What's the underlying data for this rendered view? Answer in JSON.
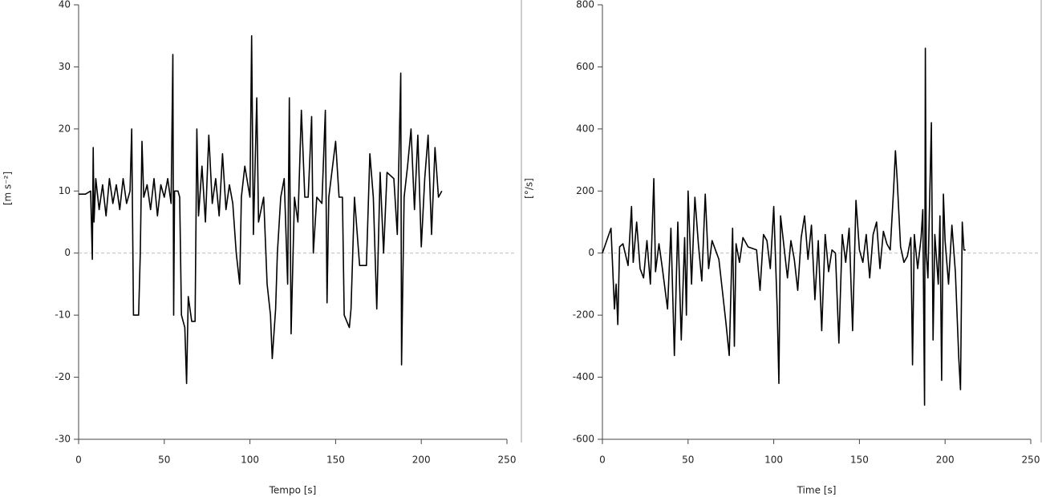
{
  "chart_data": [
    {
      "type": "line",
      "xlabel": "Tempo [s]",
      "ylabel": "[m s⁻²]",
      "xlim": [
        0,
        250
      ],
      "xticks": [
        0,
        50,
        100,
        150,
        200,
        250
      ],
      "ylim": [
        -30,
        40
      ],
      "yticks": [
        -30,
        -20,
        -10,
        0,
        10,
        20,
        30,
        40
      ],
      "zero_line": true,
      "x": [
        0,
        4,
        7,
        8,
        8.5,
        9,
        10,
        12,
        14,
        16,
        18,
        20,
        22,
        24,
        26,
        28,
        30,
        31,
        32,
        33,
        35,
        36,
        37,
        38,
        40,
        42,
        44,
        46,
        48,
        50,
        52,
        54,
        55,
        55.5,
        56,
        58,
        59,
        60,
        62,
        63,
        64,
        66,
        68,
        69,
        70,
        72,
        74,
        76,
        78,
        80,
        82,
        84,
        86,
        88,
        90,
        92,
        94,
        95,
        97,
        100,
        101,
        102,
        104,
        105,
        108,
        110,
        112,
        113,
        115,
        116,
        118,
        120,
        122,
        123,
        124,
        126,
        128,
        130,
        132,
        134,
        136,
        137,
        139,
        142,
        144,
        145,
        146,
        150,
        152,
        154,
        155,
        158,
        159,
        161,
        164,
        168,
        170,
        172,
        174,
        176,
        178,
        180,
        184,
        186,
        188,
        188.5,
        190,
        192,
        194,
        196,
        198,
        200,
        202,
        204,
        206,
        208,
        210,
        212
      ],
      "series": [
        {
          "color": "#000000",
          "values": [
            9.5,
            9.5,
            10,
            -1,
            17,
            5,
            12,
            7,
            11,
            6,
            12,
            8,
            11,
            7,
            12,
            8,
            10,
            20,
            -10,
            -10,
            -10,
            0,
            18,
            9,
            11,
            7,
            12,
            6,
            11,
            9,
            12,
            8,
            32,
            -10,
            10,
            10,
            9,
            -10,
            -12,
            -21,
            -7,
            -11,
            -11,
            20,
            6,
            14,
            5,
            19,
            8,
            12,
            6,
            16,
            7,
            11,
            8,
            0,
            -5,
            9,
            14,
            9,
            35,
            3,
            25,
            5,
            9,
            -5,
            -10,
            -17,
            -9,
            0,
            9,
            12,
            -5,
            25,
            -13,
            9,
            5,
            23,
            9,
            9,
            22,
            0,
            9,
            8,
            23,
            -8,
            9,
            18,
            9,
            9,
            -10,
            -12,
            -9,
            9,
            -2,
            -2,
            16,
            9,
            -9,
            13,
            0,
            13,
            12,
            3,
            29,
            -18,
            9,
            14,
            20,
            7,
            19,
            1,
            12,
            19,
            3,
            17,
            9,
            10
          ]
        }
      ]
    },
    {
      "type": "line",
      "xlabel": "Time [s]",
      "ylabel": "[°/s]",
      "xlim": [
        0,
        250
      ],
      "xticks": [
        0,
        50,
        100,
        150,
        200,
        250
      ],
      "ylim": [
        -600,
        800
      ],
      "yticks": [
        -600,
        -400,
        -200,
        0,
        200,
        400,
        600,
        800
      ],
      "zero_line": true,
      "x": [
        0,
        5,
        7,
        8,
        9,
        10,
        12,
        15,
        17,
        18,
        20,
        22,
        24,
        26,
        28,
        30,
        31,
        33,
        35,
        38,
        40,
        42,
        44,
        46,
        48,
        49,
        50,
        52,
        54,
        56,
        58,
        60,
        62,
        64,
        68,
        70,
        72,
        74,
        76,
        77,
        78,
        80,
        82,
        85,
        90,
        92,
        94,
        96,
        98,
        100,
        102,
        103,
        104,
        106,
        108,
        110,
        112,
        114,
        116,
        118,
        120,
        122,
        124,
        126,
        128,
        130,
        132,
        134,
        136,
        138,
        140,
        142,
        144,
        146,
        148,
        150,
        152,
        154,
        156,
        158,
        160,
        162,
        164,
        166,
        168,
        170,
        171,
        172,
        174,
        176,
        178,
        180,
        181,
        182,
        184,
        186,
        187,
        188,
        188.5,
        189,
        190,
        192,
        193,
        194,
        196,
        197,
        198,
        199,
        200,
        202,
        204,
        206,
        208,
        209,
        210,
        211,
        212
      ],
      "series": [
        {
          "color": "#000000",
          "values": [
            0,
            80,
            -180,
            -100,
            -230,
            20,
            30,
            -40,
            150,
            -30,
            100,
            -50,
            -80,
            40,
            -100,
            240,
            -60,
            30,
            -50,
            -180,
            80,
            -330,
            100,
            -280,
            50,
            -200,
            200,
            -100,
            180,
            30,
            -90,
            190,
            -50,
            40,
            -20,
            -120,
            -220,
            -330,
            80,
            -300,
            30,
            -30,
            50,
            20,
            10,
            -120,
            60,
            40,
            -50,
            150,
            -180,
            -420,
            120,
            20,
            -80,
            40,
            -20,
            -120,
            50,
            120,
            -20,
            90,
            -150,
            40,
            -250,
            60,
            -60,
            10,
            0,
            -290,
            60,
            -30,
            80,
            -250,
            170,
            10,
            -30,
            60,
            -80,
            60,
            100,
            -50,
            70,
            30,
            10,
            210,
            330,
            240,
            20,
            -30,
            -10,
            50,
            -360,
            60,
            -50,
            50,
            140,
            -490,
            660,
            0,
            -80,
            420,
            -280,
            60,
            -100,
            120,
            -410,
            190,
            40,
            -100,
            90,
            -60,
            -340,
            -440,
            100,
            10,
            10
          ]
        }
      ]
    }
  ]
}
